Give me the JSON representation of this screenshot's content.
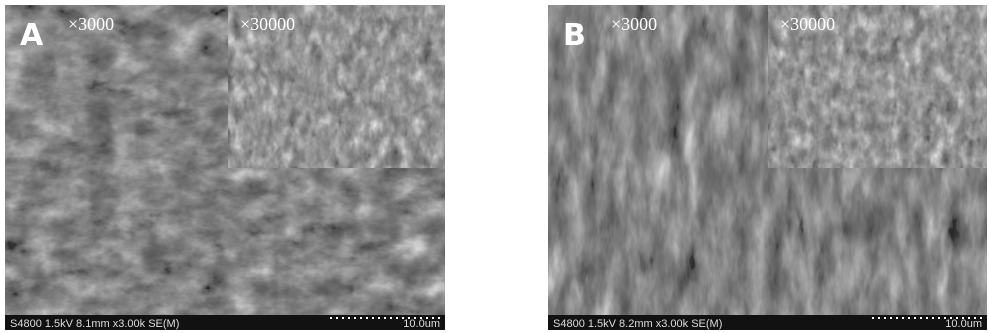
{
  "panels": [
    {
      "label": "A",
      "magnification": "×3000",
      "inset_magnification": "×30000",
      "footer": "S4800 1.5kV 8.1mm x3.00k SE(M)",
      "scale": "10.0um"
    },
    {
      "label": "B",
      "magnification": "×3000",
      "inset_magnification": "×30000",
      "footer": "S4800 1.5kV 8.2mm x3.00k SE(M)",
      "scale": "10.0um"
    }
  ]
}
